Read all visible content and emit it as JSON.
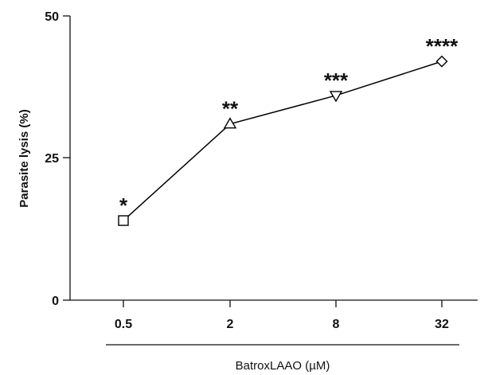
{
  "chart_data": {
    "type": "line",
    "title": "",
    "xlabel": "BatroxLAAO (µM)",
    "ylabel": "Parasite lysis (%)",
    "ylim": [
      0,
      50
    ],
    "yticks": [
      "0",
      "25",
      "50"
    ],
    "categories": [
      "0.5",
      "2",
      "8",
      "32"
    ],
    "x_scale": "log",
    "series": [
      {
        "color": "#000000",
        "values": [
          14,
          31,
          36,
          42
        ],
        "markers": [
          "square-icon",
          "triangle-up-icon",
          "triangle-down-icon",
          "diamond-icon"
        ],
        "significance": [
          "*",
          "**",
          "***",
          "****"
        ]
      }
    ],
    "grid": false,
    "legend": "none"
  }
}
